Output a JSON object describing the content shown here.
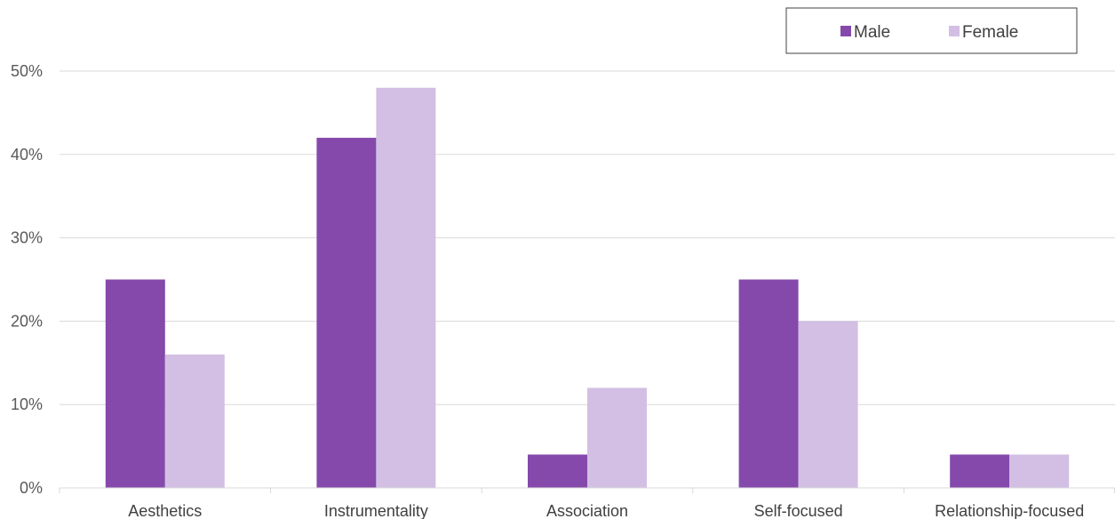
{
  "chart_data": {
    "type": "bar",
    "categories": [
      "Aesthetics",
      "Instrumentality",
      "Association",
      "Self-focused",
      "Relationship-focused"
    ],
    "series": [
      {
        "name": "Male",
        "values": [
          25,
          42,
          4,
          25,
          4
        ],
        "color": "#8549AC"
      },
      {
        "name": "Female",
        "values": [
          16,
          48,
          12,
          20,
          4
        ],
        "color": "#D3BFE3"
      }
    ],
    "y_ticks": [
      "0%",
      "10%",
      "20%",
      "30%",
      "40%",
      "50%"
    ],
    "ylim": [
      0,
      50
    ],
    "y_unit": "%",
    "grid": true,
    "legend_position": "top-right"
  }
}
